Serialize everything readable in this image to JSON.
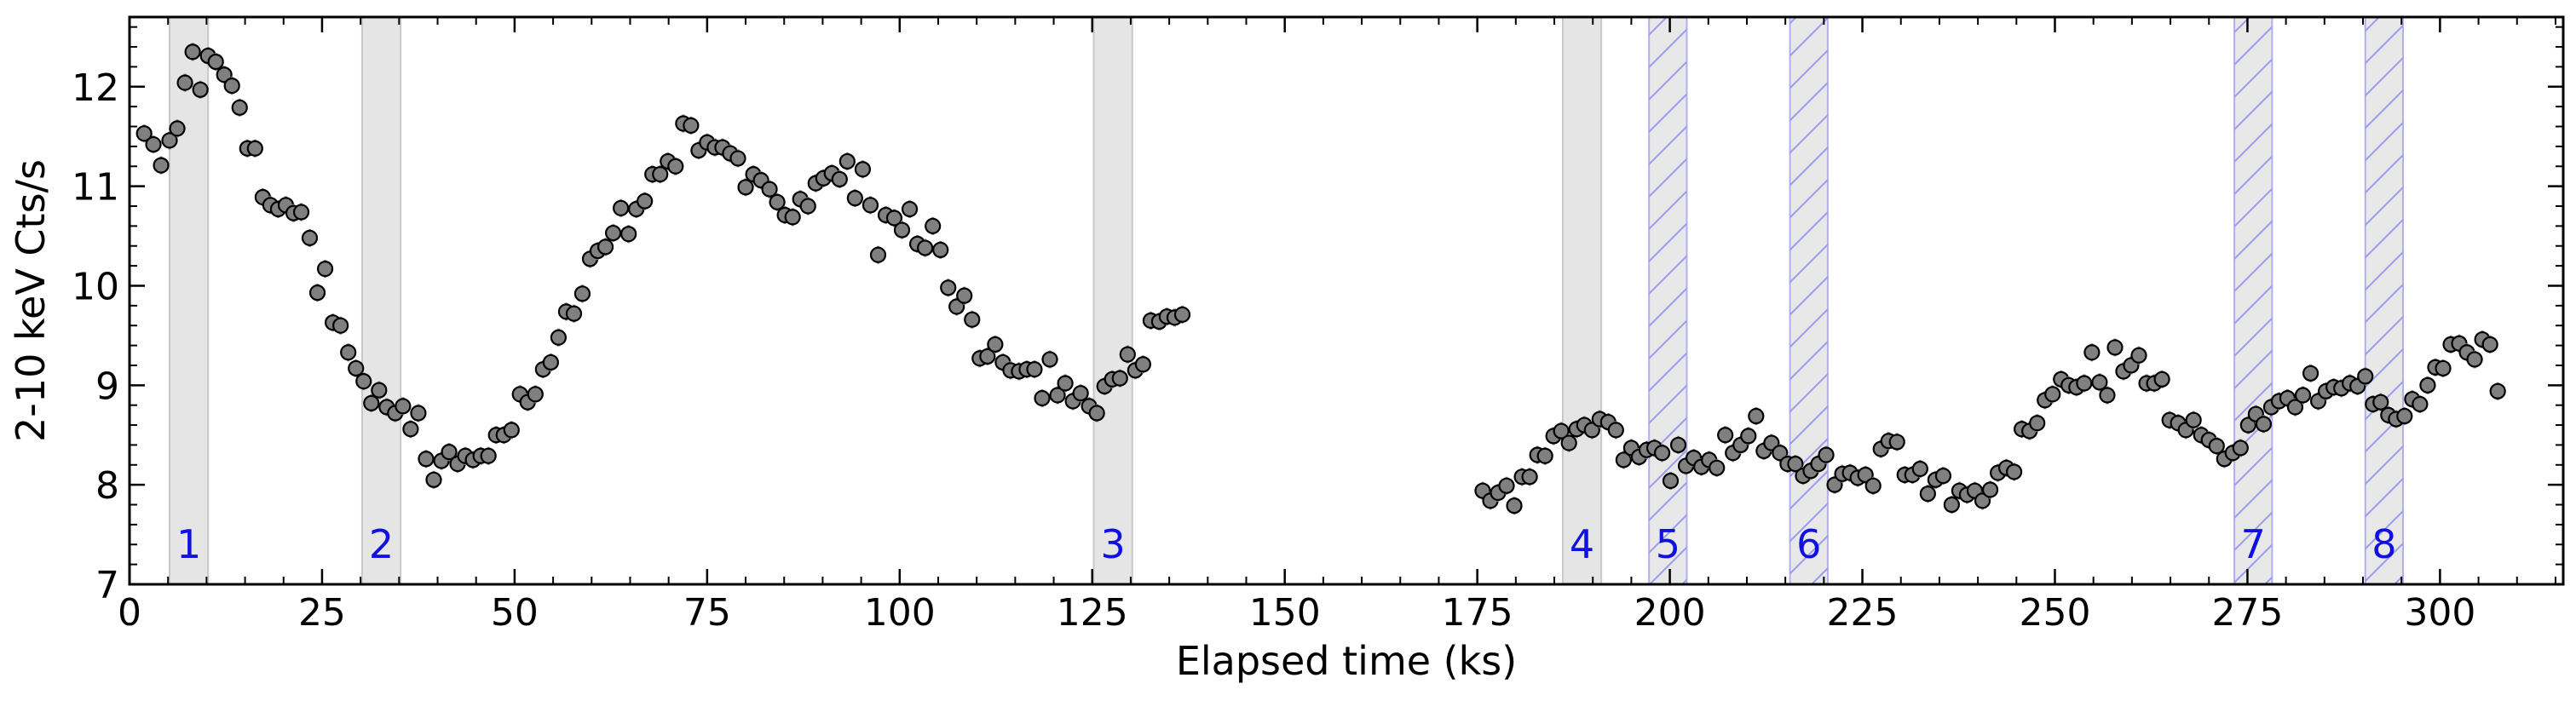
{
  "chart_data": {
    "type": "scatter",
    "xlabel": "Elapsed time (ks)",
    "ylabel": "2-10 keV Cts/s",
    "xlim": [
      0,
      316
    ],
    "ylim": [
      7,
      12.7
    ],
    "x_ticks": [
      0,
      25,
      50,
      75,
      100,
      125,
      150,
      175,
      200,
      225,
      250,
      275,
      300
    ],
    "x_tick_labels": [
      "0",
      "25",
      "50",
      "75",
      "100",
      "125",
      "150",
      "175",
      "200",
      "225",
      "250",
      "275",
      "300"
    ],
    "y_ticks": [
      7,
      8,
      9,
      10,
      11,
      12
    ],
    "y_tick_labels": [
      "7",
      "8",
      "9",
      "10",
      "11",
      "12"
    ],
    "grid": false,
    "marker": {
      "fill": "#808080",
      "edge": "#000000",
      "errorbar": "#888888"
    },
    "error": 0.09,
    "intervals": [
      {
        "label": "1",
        "x0": 5.2,
        "x1": 10.2,
        "style": "solid"
      },
      {
        "label": "2",
        "x0": 30.2,
        "x1": 35.2,
        "style": "solid"
      },
      {
        "label": "3",
        "x0": 125.2,
        "x1": 130.2,
        "style": "solid"
      },
      {
        "label": "4",
        "x0": 186.1,
        "x1": 191.1,
        "style": "solid"
      },
      {
        "label": "5",
        "x0": 197.3,
        "x1": 202.2,
        "style": "hatched"
      },
      {
        "label": "6",
        "x0": 215.6,
        "x1": 220.5,
        "style": "hatched"
      },
      {
        "label": "7",
        "x0": 273.3,
        "x1": 278.2,
        "style": "hatched"
      },
      {
        "label": "8",
        "x0": 290.3,
        "x1": 295.2,
        "style": "hatched"
      }
    ],
    "interval_colors": {
      "solid_fill": "#e5e5e5",
      "solid_edge": "#c8c8c8",
      "hatch_line": "#9a9af0",
      "hatch_edge": "#b0b0f0",
      "label": "#1010e0"
    },
    "points": [
      [
        1.9,
        11.53
      ],
      [
        3.1,
        11.42
      ],
      [
        4.1,
        11.21
      ],
      [
        5.2,
        11.46
      ],
      [
        6.2,
        11.58
      ],
      [
        7.2,
        12.04
      ],
      [
        8.2,
        12.35
      ],
      [
        9.2,
        11.97
      ],
      [
        10.2,
        12.31
      ],
      [
        11.2,
        12.25
      ],
      [
        12.3,
        12.12
      ],
      [
        13.3,
        12.01
      ],
      [
        14.3,
        11.79
      ],
      [
        15.3,
        11.38
      ],
      [
        16.3,
        11.38
      ],
      [
        17.3,
        10.89
      ],
      [
        18.3,
        10.81
      ],
      [
        19.3,
        10.77
      ],
      [
        20.3,
        10.81
      ],
      [
        21.3,
        10.73
      ],
      [
        22.3,
        10.74
      ],
      [
        23.4,
        10.48
      ],
      [
        24.4,
        9.93
      ],
      [
        25.4,
        10.17
      ],
      [
        26.4,
        9.63
      ],
      [
        27.4,
        9.6
      ],
      [
        28.4,
        9.33
      ],
      [
        29.4,
        9.17
      ],
      [
        30.4,
        9.04
      ],
      [
        31.4,
        8.82
      ],
      [
        32.4,
        8.95
      ],
      [
        33.4,
        8.78
      ],
      [
        34.5,
        8.72
      ],
      [
        35.5,
        8.79
      ],
      [
        36.5,
        8.56
      ],
      [
        37.5,
        8.72
      ],
      [
        38.5,
        8.26
      ],
      [
        39.5,
        8.05
      ],
      [
        40.5,
        8.24
      ],
      [
        41.5,
        8.33
      ],
      [
        42.6,
        8.21
      ],
      [
        43.6,
        8.29
      ],
      [
        44.6,
        8.25
      ],
      [
        45.6,
        8.29
      ],
      [
        46.6,
        8.29
      ],
      [
        47.6,
        8.5
      ],
      [
        48.6,
        8.5
      ],
      [
        49.6,
        8.55
      ],
      [
        50.7,
        8.91
      ],
      [
        51.7,
        8.83
      ],
      [
        52.7,
        8.91
      ],
      [
        53.7,
        9.16
      ],
      [
        54.7,
        9.23
      ],
      [
        55.7,
        9.48
      ],
      [
        56.7,
        9.74
      ],
      [
        57.7,
        9.72
      ],
      [
        58.8,
        9.92
      ],
      [
        59.8,
        10.27
      ],
      [
        60.8,
        10.35
      ],
      [
        61.8,
        10.39
      ],
      [
        62.8,
        10.53
      ],
      [
        63.8,
        10.78
      ],
      [
        64.8,
        10.52
      ],
      [
        65.8,
        10.77
      ],
      [
        66.9,
        10.85
      ],
      [
        67.9,
        11.12
      ],
      [
        68.9,
        11.12
      ],
      [
        69.9,
        11.25
      ],
      [
        70.9,
        11.2
      ],
      [
        71.9,
        11.63
      ],
      [
        72.9,
        11.61
      ],
      [
        73.9,
        11.36
      ],
      [
        75.0,
        11.44
      ],
      [
        76.0,
        11.39
      ],
      [
        77.0,
        11.39
      ],
      [
        78.0,
        11.33
      ],
      [
        79.0,
        11.28
      ],
      [
        80.0,
        10.99
      ],
      [
        81.0,
        11.12
      ],
      [
        82.0,
        11.06
      ],
      [
        83.1,
        10.97
      ],
      [
        84.1,
        10.84
      ],
      [
        85.1,
        10.71
      ],
      [
        86.1,
        10.69
      ],
      [
        87.1,
        10.87
      ],
      [
        88.1,
        10.8
      ],
      [
        89.1,
        11.03
      ],
      [
        90.1,
        11.08
      ],
      [
        91.2,
        11.13
      ],
      [
        92.2,
        11.07
      ],
      [
        93.2,
        11.25
      ],
      [
        94.2,
        10.88
      ],
      [
        95.2,
        11.17
      ],
      [
        96.2,
        10.81
      ],
      [
        97.2,
        10.31
      ],
      [
        98.2,
        10.71
      ],
      [
        99.3,
        10.68
      ],
      [
        100.3,
        10.56
      ],
      [
        101.3,
        10.77
      ],
      [
        102.3,
        10.42
      ],
      [
        103.3,
        10.38
      ],
      [
        104.3,
        10.6
      ],
      [
        105.3,
        10.36
      ],
      [
        106.3,
        9.98
      ],
      [
        107.4,
        9.79
      ],
      [
        108.4,
        9.9
      ],
      [
        109.4,
        9.66
      ],
      [
        110.4,
        9.27
      ],
      [
        111.4,
        9.29
      ],
      [
        112.4,
        9.41
      ],
      [
        113.4,
        9.23
      ],
      [
        114.4,
        9.15
      ],
      [
        115.5,
        9.14
      ],
      [
        116.5,
        9.16
      ],
      [
        117.5,
        9.16
      ],
      [
        118.5,
        8.87
      ],
      [
        119.5,
        9.26
      ],
      [
        120.5,
        8.9
      ],
      [
        121.5,
        9.02
      ],
      [
        122.5,
        8.84
      ],
      [
        123.5,
        8.92
      ],
      [
        124.6,
        8.79
      ],
      [
        125.6,
        8.72
      ],
      [
        126.6,
        8.99
      ],
      [
        127.6,
        9.06
      ],
      [
        128.6,
        9.07
      ],
      [
        129.6,
        9.31
      ],
      [
        130.6,
        9.15
      ],
      [
        131.6,
        9.21
      ],
      [
        132.6,
        9.65
      ],
      [
        133.7,
        9.64
      ],
      [
        134.7,
        9.69
      ],
      [
        135.7,
        9.68
      ],
      [
        136.7,
        9.71
      ],
      [
        175.7,
        7.94
      ],
      [
        176.7,
        7.84
      ],
      [
        177.7,
        7.92
      ],
      [
        178.8,
        7.99
      ],
      [
        179.8,
        7.79
      ],
      [
        180.8,
        8.08
      ],
      [
        181.8,
        8.08
      ],
      [
        182.8,
        8.3
      ],
      [
        183.8,
        8.29
      ],
      [
        184.9,
        8.49
      ],
      [
        185.9,
        8.54
      ],
      [
        186.9,
        8.42
      ],
      [
        187.9,
        8.56
      ],
      [
        188.9,
        8.6
      ],
      [
        189.9,
        8.55
      ],
      [
        190.9,
        8.66
      ],
      [
        192.0,
        8.63
      ],
      [
        193.0,
        8.55
      ],
      [
        194.0,
        8.25
      ],
      [
        195.0,
        8.37
      ],
      [
        196.0,
        8.28
      ],
      [
        197.0,
        8.35
      ],
      [
        198.0,
        8.37
      ],
      [
        199.0,
        8.32
      ],
      [
        200.1,
        8.04
      ],
      [
        201.1,
        8.4
      ],
      [
        202.1,
        8.19
      ],
      [
        203.1,
        8.27
      ],
      [
        204.1,
        8.18
      ],
      [
        205.1,
        8.25
      ],
      [
        206.1,
        8.17
      ],
      [
        207.2,
        8.5
      ],
      [
        208.2,
        8.32
      ],
      [
        209.2,
        8.4
      ],
      [
        210.2,
        8.49
      ],
      [
        211.2,
        8.69
      ],
      [
        212.2,
        8.34
      ],
      [
        213.2,
        8.42
      ],
      [
        214.3,
        8.32
      ],
      [
        215.3,
        8.21
      ],
      [
        216.3,
        8.21
      ],
      [
        217.3,
        8.09
      ],
      [
        218.3,
        8.14
      ],
      [
        219.3,
        8.21
      ],
      [
        220.3,
        8.3
      ],
      [
        221.4,
        8.0
      ],
      [
        222.4,
        8.11
      ],
      [
        223.4,
        8.12
      ],
      [
        224.4,
        8.07
      ],
      [
        225.4,
        8.1
      ],
      [
        226.4,
        7.99
      ],
      [
        227.4,
        8.36
      ],
      [
        228.4,
        8.44
      ],
      [
        229.5,
        8.43
      ],
      [
        230.5,
        8.1
      ],
      [
        231.5,
        8.1
      ],
      [
        232.5,
        8.16
      ],
      [
        233.5,
        7.91
      ],
      [
        234.5,
        8.05
      ],
      [
        235.5,
        8.09
      ],
      [
        236.6,
        7.8
      ],
      [
        237.6,
        7.94
      ],
      [
        238.6,
        7.9
      ],
      [
        239.6,
        7.94
      ],
      [
        240.6,
        7.84
      ],
      [
        241.6,
        7.95
      ],
      [
        242.6,
        8.12
      ],
      [
        243.7,
        8.17
      ],
      [
        244.7,
        8.13
      ],
      [
        245.7,
        8.56
      ],
      [
        246.7,
        8.54
      ],
      [
        247.7,
        8.62
      ],
      [
        248.7,
        8.85
      ],
      [
        249.7,
        8.91
      ],
      [
        250.8,
        9.06
      ],
      [
        251.8,
        9.0
      ],
      [
        252.8,
        8.98
      ],
      [
        253.8,
        9.02
      ],
      [
        254.8,
        9.33
      ],
      [
        255.8,
        9.03
      ],
      [
        256.8,
        8.9
      ],
      [
        257.8,
        9.38
      ],
      [
        258.9,
        9.14
      ],
      [
        259.9,
        9.2
      ],
      [
        260.9,
        9.3
      ],
      [
        261.9,
        9.02
      ],
      [
        262.9,
        9.02
      ],
      [
        263.9,
        9.06
      ],
      [
        264.9,
        8.65
      ],
      [
        266.0,
        8.62
      ],
      [
        267.0,
        8.55
      ],
      [
        268.0,
        8.65
      ],
      [
        269.0,
        8.5
      ],
      [
        270.0,
        8.45
      ],
      [
        271.0,
        8.39
      ],
      [
        272.0,
        8.26
      ],
      [
        273.1,
        8.32
      ],
      [
        274.1,
        8.37
      ],
      [
        275.1,
        8.6
      ],
      [
        276.1,
        8.71
      ],
      [
        277.1,
        8.61
      ],
      [
        278.1,
        8.78
      ],
      [
        279.1,
        8.84
      ],
      [
        280.2,
        8.87
      ],
      [
        281.2,
        8.78
      ],
      [
        282.2,
        8.9
      ],
      [
        283.2,
        9.12
      ],
      [
        284.2,
        8.84
      ],
      [
        285.2,
        8.94
      ],
      [
        286.2,
        8.98
      ],
      [
        287.2,
        8.97
      ],
      [
        288.3,
        9.02
      ],
      [
        289.3,
        8.99
      ],
      [
        290.3,
        9.09
      ],
      [
        291.3,
        8.81
      ],
      [
        292.3,
        8.83
      ],
      [
        293.3,
        8.7
      ],
      [
        294.3,
        8.66
      ],
      [
        295.4,
        8.69
      ],
      [
        296.4,
        8.86
      ],
      [
        297.4,
        8.81
      ],
      [
        298.4,
        9.0
      ],
      [
        299.4,
        9.18
      ],
      [
        300.4,
        9.17
      ],
      [
        301.4,
        9.41
      ],
      [
        302.5,
        9.42
      ],
      [
        303.5,
        9.33
      ],
      [
        304.5,
        9.26
      ],
      [
        305.5,
        9.46
      ],
      [
        306.5,
        9.41
      ],
      [
        307.5,
        8.94
      ]
    ]
  }
}
